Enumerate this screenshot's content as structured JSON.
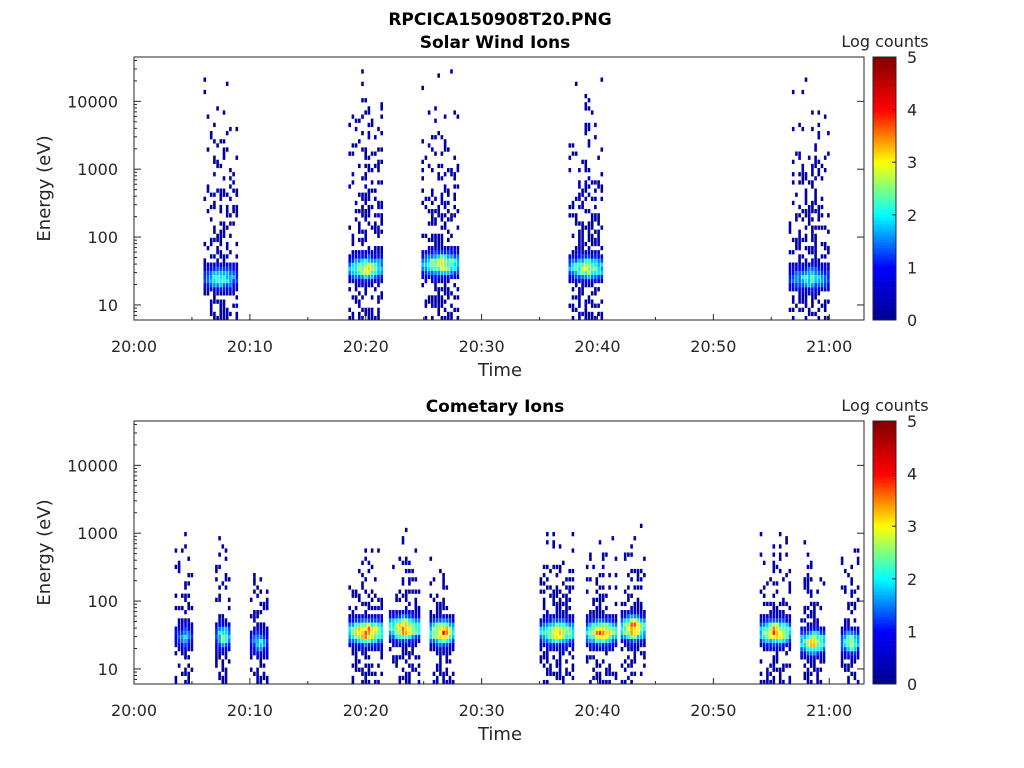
{
  "figure": {
    "title": "RPCICA150908T20.PNG"
  },
  "colormap": {
    "name": "jet",
    "stops": [
      "#00008f",
      "#0000ff",
      "#00ffff",
      "#ffff00",
      "#ff0000",
      "#800000"
    ]
  },
  "chart_data": [
    {
      "type": "heatmap",
      "title": "Solar Wind Ions",
      "xlabel": "Time",
      "ylabel": "Energy (eV)",
      "x_ticks": [
        "20:00",
        "20:10",
        "20:20",
        "20:30",
        "20:40",
        "20:50",
        "21:00"
      ],
      "x_tick_minutes": [
        0,
        10,
        20,
        30,
        40,
        50,
        60
      ],
      "xlim_minutes": [
        0,
        63
      ],
      "y_scale": "log",
      "y_ticks": [
        "10",
        "100",
        "1000",
        "10000"
      ],
      "y_tick_values": [
        10,
        100,
        1000,
        10000
      ],
      "ylim": [
        6,
        45000
      ],
      "colorbar": {
        "label": "Log counts",
        "ticks": [
          "0",
          "1",
          "2",
          "3",
          "4",
          "5"
        ],
        "range": [
          0,
          5
        ]
      },
      "bursts": [
        {
          "start_min": 6.0,
          "end_min": 8.8,
          "peak_log_counts": 2.3,
          "peak_energy_ev": 25,
          "max_energy_ev": 25000
        },
        {
          "start_min": 18.5,
          "end_min": 21.5,
          "peak_log_counts": 3.0,
          "peak_energy_ev": 35,
          "max_energy_ev": 30000
        },
        {
          "start_min": 24.8,
          "end_min": 28.0,
          "peak_log_counts": 3.1,
          "peak_energy_ev": 40,
          "max_energy_ev": 30000
        },
        {
          "start_min": 37.5,
          "end_min": 40.5,
          "peak_log_counts": 2.9,
          "peak_energy_ev": 35,
          "max_energy_ev": 30000
        },
        {
          "start_min": 56.5,
          "end_min": 60.0,
          "peak_log_counts": 2.2,
          "peak_energy_ev": 25,
          "max_energy_ev": 20000
        }
      ]
    },
    {
      "type": "heatmap",
      "title": "Cometary Ions",
      "xlabel": "Time",
      "ylabel": "Energy (eV)",
      "x_ticks": [
        "20:00",
        "20:10",
        "20:20",
        "20:30",
        "20:40",
        "20:50",
        "21:00"
      ],
      "x_tick_minutes": [
        0,
        10,
        20,
        30,
        40,
        50,
        60
      ],
      "xlim_minutes": [
        0,
        63
      ],
      "y_scale": "log",
      "y_ticks": [
        "10",
        "100",
        "1000",
        "10000"
      ],
      "y_tick_values": [
        10,
        100,
        1000,
        10000
      ],
      "ylim": [
        6,
        45000
      ],
      "colorbar": {
        "label": "Log counts",
        "ticks": [
          "0",
          "1",
          "2",
          "3",
          "4",
          "5"
        ],
        "range": [
          0,
          5
        ]
      },
      "bursts": [
        {
          "start_min": 3.5,
          "end_min": 5.0,
          "peak_log_counts": 1.8,
          "peak_energy_ev": 30,
          "max_energy_ev": 1200
        },
        {
          "start_min": 7.0,
          "end_min": 8.3,
          "peak_log_counts": 2.6,
          "peak_energy_ev": 30,
          "max_energy_ev": 1400
        },
        {
          "start_min": 10.0,
          "end_min": 11.5,
          "peak_log_counts": 2.0,
          "peak_energy_ev": 25,
          "max_energy_ev": 900
        },
        {
          "start_min": 18.5,
          "end_min": 21.5,
          "peak_log_counts": 3.8,
          "peak_energy_ev": 35,
          "max_energy_ev": 500
        },
        {
          "start_min": 22.0,
          "end_min": 24.5,
          "peak_log_counts": 3.7,
          "peak_energy_ev": 40,
          "max_energy_ev": 900
        },
        {
          "start_min": 25.5,
          "end_min": 27.5,
          "peak_log_counts": 3.8,
          "peak_energy_ev": 35,
          "max_energy_ev": 500
        },
        {
          "start_min": 35.0,
          "end_min": 38.0,
          "peak_log_counts": 3.4,
          "peak_energy_ev": 35,
          "max_energy_ev": 1200
        },
        {
          "start_min": 39.0,
          "end_min": 41.5,
          "peak_log_counts": 3.7,
          "peak_energy_ev": 35,
          "max_energy_ev": 1000
        },
        {
          "start_min": 42.0,
          "end_min": 44.0,
          "peak_log_counts": 3.8,
          "peak_energy_ev": 40,
          "max_energy_ev": 1200
        },
        {
          "start_min": 54.0,
          "end_min": 56.5,
          "peak_log_counts": 3.6,
          "peak_energy_ev": 35,
          "max_energy_ev": 900
        },
        {
          "start_min": 57.5,
          "end_min": 59.5,
          "peak_log_counts": 3.4,
          "peak_energy_ev": 25,
          "max_energy_ev": 700
        },
        {
          "start_min": 61.0,
          "end_min": 62.5,
          "peak_log_counts": 2.8,
          "peak_energy_ev": 25,
          "max_energy_ev": 900
        }
      ]
    }
  ]
}
